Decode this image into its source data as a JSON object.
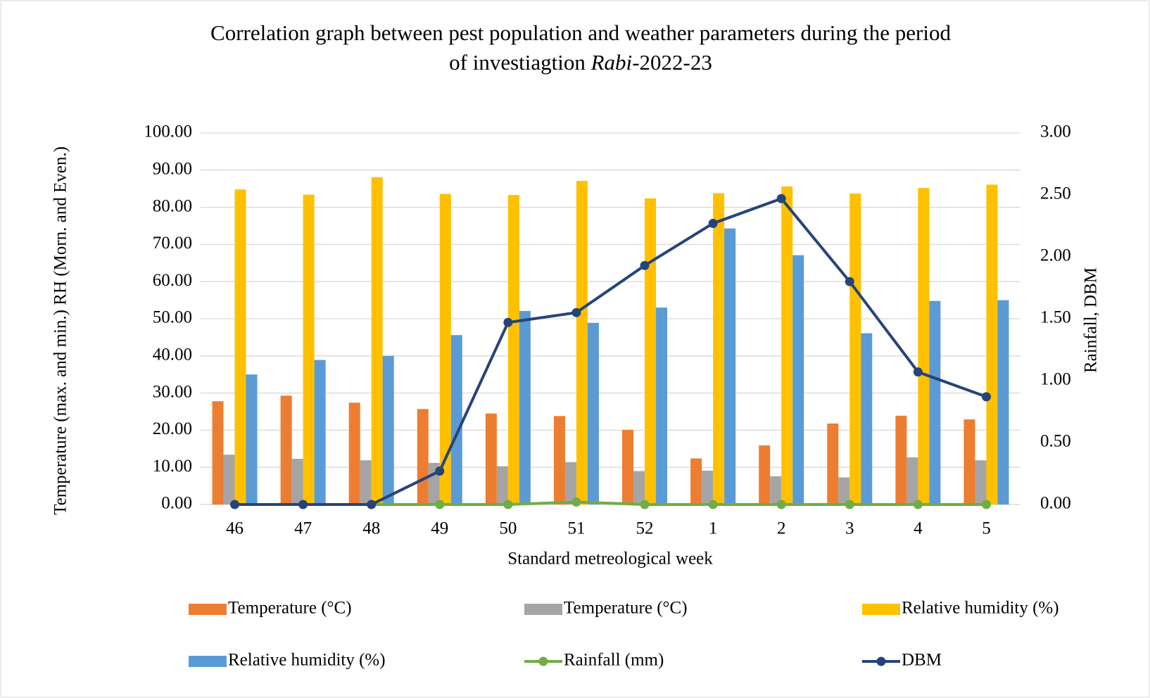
{
  "chart_data": {
    "type": "bar",
    "title": [
      "Correlation graph between pest population and weather parameters during the period",
      "of investiagtion ",
      "Rabi",
      "-2022-23"
    ],
    "x_label": "Standard metreological week",
    "y_label": "Temperature (max. and min.) RH (Morn. and Even.)",
    "y2_label": "Rainfall, DBM",
    "categories": [
      "46",
      "47",
      "48",
      "49",
      "50",
      "51",
      "52",
      "1",
      "2",
      "3",
      "4",
      "5"
    ],
    "ylim": [
      0,
      100
    ],
    "yticks": [
      {
        "value": 0,
        "label": "0.00"
      },
      {
        "value": 10,
        "label": "10.00"
      },
      {
        "value": 20,
        "label": "20.00"
      },
      {
        "value": 30,
        "label": "30.00"
      },
      {
        "value": 40,
        "label": "40.00"
      },
      {
        "value": 50,
        "label": "50.00"
      },
      {
        "value": 60,
        "label": "60.00"
      },
      {
        "value": 70,
        "label": "70.00"
      },
      {
        "value": 80,
        "label": "80.00"
      },
      {
        "value": 90,
        "label": "90.00"
      },
      {
        "value": 100,
        "label": "100.00"
      }
    ],
    "y2lim": [
      0,
      3
    ],
    "y2ticks": [
      {
        "value": 0,
        "label": "0.00"
      },
      {
        "value": 0.5,
        "label": "0.50"
      },
      {
        "value": 1,
        "label": "1.00"
      },
      {
        "value": 1.5,
        "label": "1.50"
      },
      {
        "value": 2,
        "label": "2.00"
      },
      {
        "value": 2.5,
        "label": "2.50"
      },
      {
        "value": 3,
        "label": "3.00"
      }
    ],
    "grid": true,
    "legend": "bottom",
    "series": [
      {
        "name": "Temperature (°C)",
        "type": "bar",
        "color": "#ed7d31",
        "values": [
          27.8,
          29.3,
          27.4,
          25.7,
          24.5,
          23.8,
          20.1,
          12.4,
          15.9,
          21.8,
          23.9,
          22.9
        ]
      },
      {
        "name": "Temperature (°C)",
        "type": "bar",
        "color": "#a5a5a5",
        "values": [
          13.4,
          12.3,
          11.9,
          11.2,
          10.3,
          11.4,
          9.0,
          9.1,
          7.6,
          7.3,
          12.7,
          11.9
        ]
      },
      {
        "name": "Relative humidity (%)",
        "type": "bar",
        "color": "#ffc000",
        "values": [
          84.8,
          83.4,
          88.1,
          83.6,
          83.3,
          87.1,
          82.4,
          83.8,
          85.6,
          83.7,
          85.2,
          86.1
        ]
      },
      {
        "name": "Relative humidity (%)",
        "type": "bar",
        "color": "#5b9bd5",
        "values": [
          35.0,
          38.9,
          40.0,
          45.6,
          52.1,
          48.9,
          53.0,
          74.3,
          67.1,
          46.1,
          54.8,
          55.0
        ]
      },
      {
        "name": "Rainfall (mm)",
        "type": "line",
        "axis": "y2",
        "color": "#70ad47",
        "values": [
          null,
          null,
          0,
          0,
          0,
          0.02,
          0,
          0,
          0,
          0,
          0,
          0
        ]
      },
      {
        "name": "DBM",
        "type": "line",
        "axis": "y2",
        "color": "#264478",
        "values": [
          0,
          0,
          0,
          0.27,
          1.47,
          1.55,
          1.93,
          2.27,
          2.47,
          1.8,
          1.07,
          0.87
        ]
      }
    ]
  }
}
